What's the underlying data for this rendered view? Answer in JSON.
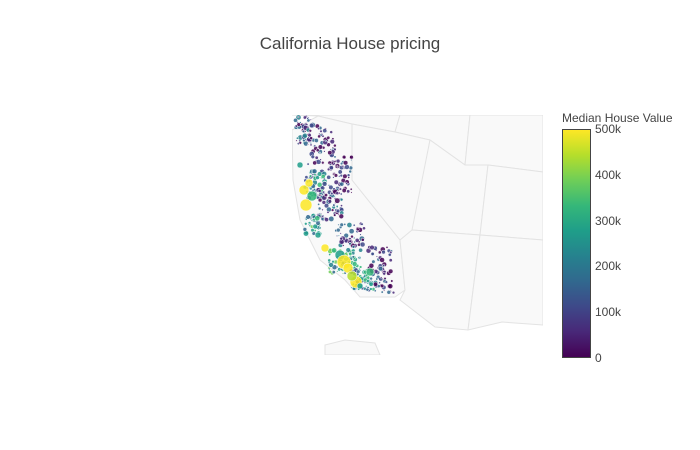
{
  "title": "California House pricing",
  "colorbar": {
    "title": "Median House Value",
    "ticks": [
      "500k",
      "400k",
      "300k",
      "200k",
      "100k",
      "0"
    ],
    "range": [
      0,
      500000
    ],
    "colorscale": "viridis",
    "colors": [
      "#440154",
      "#482878",
      "#3e4989",
      "#31688e",
      "#26828e",
      "#1f9e89",
      "#35b779",
      "#6ece58",
      "#b5de2b",
      "#fde725"
    ]
  },
  "map": {
    "scope": "usa",
    "land_color": "#f9f9f9",
    "border_color": "#e3e3e3",
    "marker_outline": "#ffffff"
  }
}
